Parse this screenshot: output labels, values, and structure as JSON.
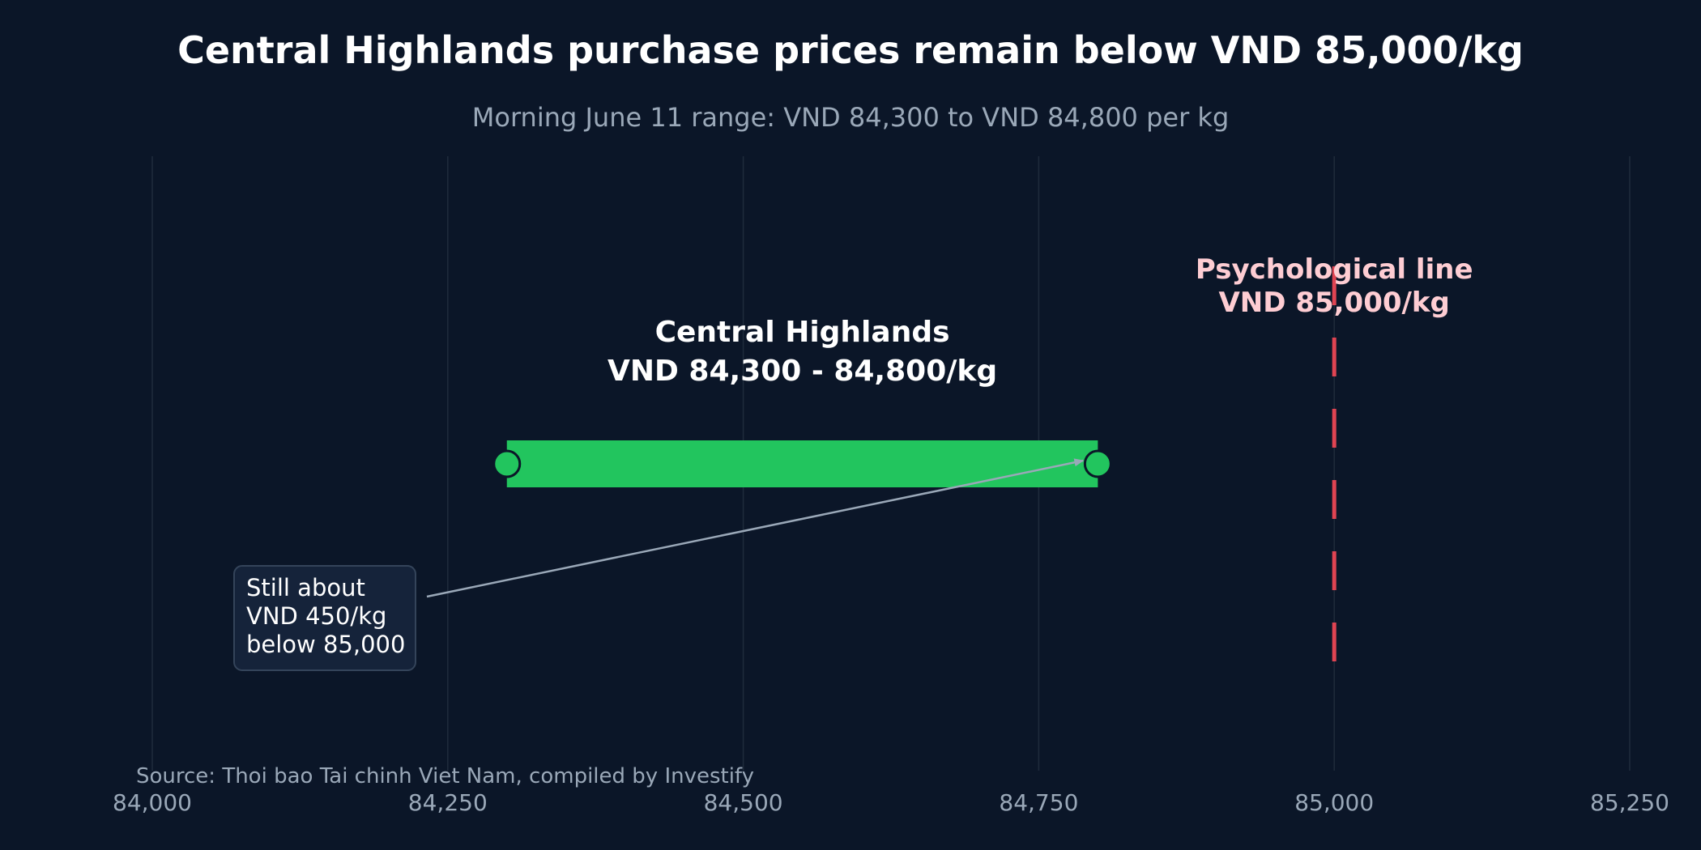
{
  "colors": {
    "background": "#0b1628",
    "grid": "#1f2b3c",
    "range_bar": "#22c55e",
    "endpoint_stroke": "#0b1628",
    "reference_line": "#e04452",
    "reference_label": "#fecdd3",
    "callout_box": "#15233a",
    "callout_border": "#34445a",
    "arrow": "#9aa8b8"
  },
  "chart_data": {
    "type": "range",
    "title": "Central Highlands purchase prices remain below VND 85,000/kg",
    "subtitle": "Morning June 11 range: VND 84,300 to VND 84,800 per kg",
    "xlim": [
      84000,
      85250
    ],
    "xticks": [
      84000,
      84250,
      84500,
      84750,
      85000,
      85250
    ],
    "xtick_labels": [
      "84,000",
      "84,250",
      "84,500",
      "84,750",
      "85,000",
      "85,250"
    ],
    "grid": true,
    "range": {
      "low": 84300,
      "high": 84800,
      "label_line1": "Central Highlands",
      "label_line2": "VND 84,300 - 84,800/kg"
    },
    "reference_line": {
      "x": 85000,
      "style": "dashed",
      "label_line1": "Psychological line",
      "label_line2": "VND 85,000/kg"
    },
    "annotation": {
      "lines": [
        "Still about",
        "VND 450/kg",
        "below 85,000"
      ],
      "arrow_target_x": 84800
    },
    "source": "Source: Thoi bao Tai chinh Viet Nam, compiled by Investify"
  }
}
